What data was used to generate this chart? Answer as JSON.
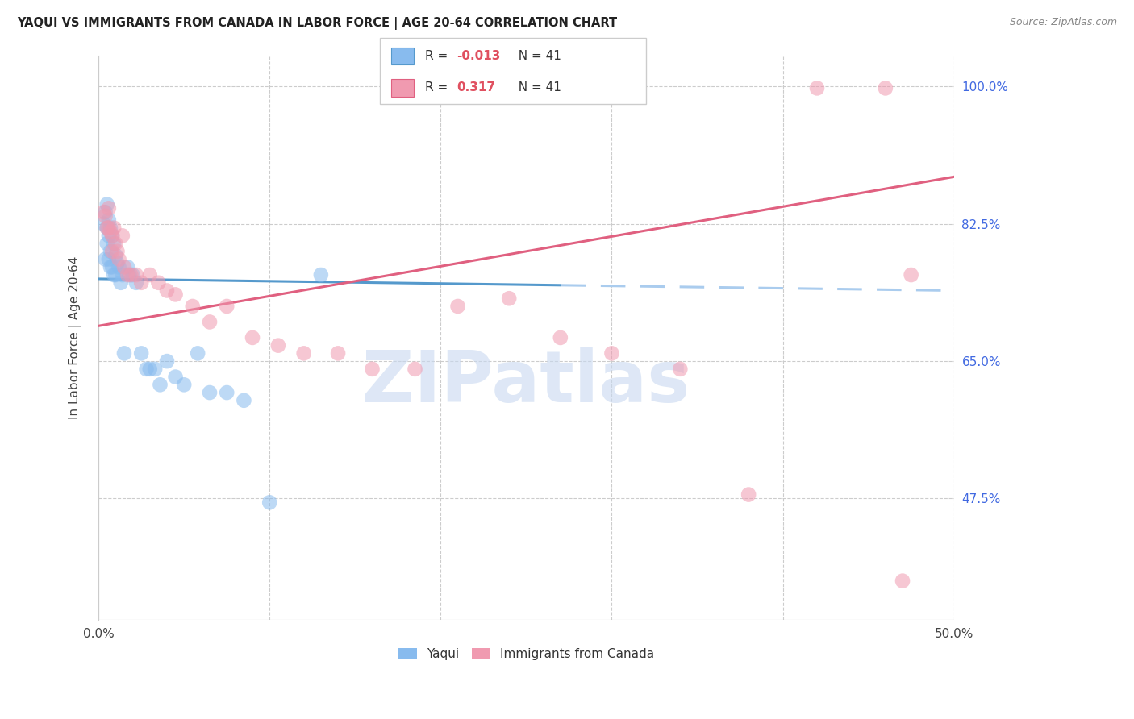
{
  "title": "YAQUI VS IMMIGRANTS FROM CANADA IN LABOR FORCE | AGE 20-64 CORRELATION CHART",
  "source": "Source: ZipAtlas.com",
  "ylabel": "In Labor Force | Age 20-64",
  "xlim": [
    0.0,
    0.5
  ],
  "ylim": [
    0.32,
    1.04
  ],
  "xtick_vals": [
    0.0,
    0.1,
    0.2,
    0.3,
    0.4,
    0.5
  ],
  "xtick_labels": [
    "0.0%",
    "",
    "",
    "",
    "",
    "50.0%"
  ],
  "ytick_vals": [
    0.475,
    0.65,
    0.825,
    1.0
  ],
  "ytick_labels": [
    "47.5%",
    "65.0%",
    "82.5%",
    "100.0%"
  ],
  "blue_color": "#88bbee",
  "pink_color": "#f09ab0",
  "blue_line_color": "#5599cc",
  "pink_line_color": "#e06080",
  "watermark": "ZIPatlas",
  "watermark_color": "#c8d8f0",
  "yaqui_x": [
    0.003,
    0.004,
    0.004,
    0.005,
    0.005,
    0.005,
    0.006,
    0.006,
    0.006,
    0.007,
    0.007,
    0.007,
    0.008,
    0.008,
    0.009,
    0.009,
    0.01,
    0.01,
    0.011,
    0.012,
    0.013,
    0.014,
    0.015,
    0.017,
    0.018,
    0.02,
    0.022,
    0.025,
    0.028,
    0.03,
    0.033,
    0.036,
    0.04,
    0.045,
    0.05,
    0.058,
    0.065,
    0.075,
    0.085,
    0.1,
    0.13
  ],
  "yaqui_y": [
    0.825,
    0.84,
    0.78,
    0.85,
    0.82,
    0.8,
    0.83,
    0.81,
    0.78,
    0.82,
    0.79,
    0.77,
    0.81,
    0.77,
    0.8,
    0.76,
    0.785,
    0.76,
    0.775,
    0.77,
    0.75,
    0.76,
    0.66,
    0.77,
    0.76,
    0.76,
    0.75,
    0.66,
    0.64,
    0.64,
    0.64,
    0.62,
    0.65,
    0.63,
    0.62,
    0.66,
    0.61,
    0.61,
    0.6,
    0.47,
    0.76
  ],
  "canada_x": [
    0.003,
    0.004,
    0.005,
    0.006,
    0.006,
    0.007,
    0.008,
    0.008,
    0.009,
    0.01,
    0.011,
    0.012,
    0.014,
    0.015,
    0.017,
    0.019,
    0.022,
    0.025,
    0.03,
    0.035,
    0.04,
    0.045,
    0.055,
    0.065,
    0.075,
    0.09,
    0.105,
    0.12,
    0.14,
    0.16,
    0.185,
    0.21,
    0.24,
    0.27,
    0.3,
    0.34,
    0.38,
    0.42,
    0.46,
    0.47,
    0.475
  ],
  "canada_y": [
    0.84,
    0.835,
    0.82,
    0.845,
    0.82,
    0.815,
    0.81,
    0.79,
    0.82,
    0.8,
    0.79,
    0.78,
    0.81,
    0.77,
    0.76,
    0.76,
    0.76,
    0.75,
    0.76,
    0.75,
    0.74,
    0.735,
    0.72,
    0.7,
    0.72,
    0.68,
    0.67,
    0.66,
    0.66,
    0.64,
    0.64,
    0.72,
    0.73,
    0.68,
    0.66,
    0.64,
    0.48,
    0.998,
    0.998,
    0.37,
    0.76
  ]
}
